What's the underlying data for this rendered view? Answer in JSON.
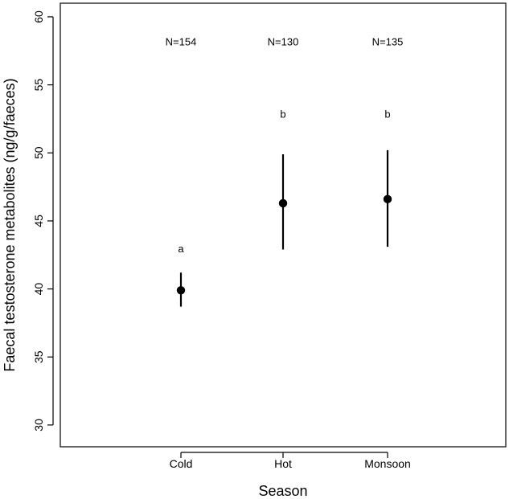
{
  "chart_data": {
    "type": "scatter",
    "title": "",
    "xlabel": "Season",
    "ylabel": "Faecal testosterone metabolites (ng/g/faeces)",
    "categories": [
      "Cold",
      "Hot",
      "Monsoon"
    ],
    "ylim": [
      28.4,
      61
    ],
    "yticks": [
      30,
      35,
      40,
      45,
      50,
      55,
      60
    ],
    "grid": false,
    "legend": "none",
    "series": [
      {
        "values": [
          39.9,
          46.3,
          46.6
        ],
        "lower": [
          38.7,
          42.9,
          43.1
        ],
        "upper": [
          41.2,
          49.9,
          50.2
        ]
      }
    ],
    "annotations": {
      "sample_sizes": [
        "N=154",
        "N=130",
        "N=135"
      ],
      "group_letters": [
        "a",
        "b",
        "b"
      ],
      "letter_y": [
        42.9,
        52.8,
        52.8
      ],
      "n_y": 58.1
    },
    "colors": {
      "marker": "#000000",
      "axis": "#000000"
    }
  }
}
